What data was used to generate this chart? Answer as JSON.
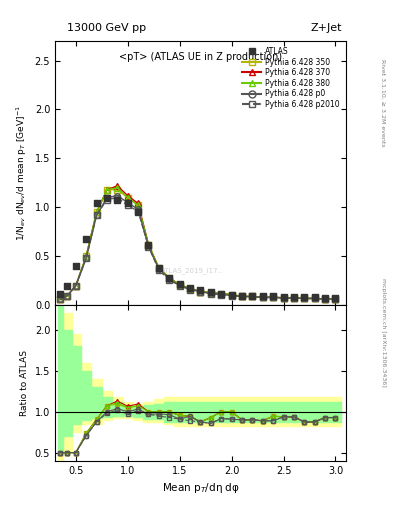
{
  "title_top": "13000 GeV pp",
  "title_right": "Z+Jet",
  "plot_title": "<pT> (ATLAS UE in Z production)",
  "ylabel_main": "1/N$_{ev}$ dN$_{ev}$/d mean p$_T$ [GeV]$^{-1}$",
  "ylabel_ratio": "Ratio to ATLAS",
  "xlabel": "Mean p$_T$/dη dφ",
  "right_label_top": "Rivet 3.1.10, ≥ 3.2M events",
  "right_label_bot": "mcplots.cern.ch [arXiv:1306.3436]",
  "watermark": "ATLAS_2019_I17...",
  "main_ylim": [
    0.0,
    2.7
  ],
  "ratio_ylim": [
    0.4,
    2.3
  ],
  "xlim": [
    0.3,
    3.1
  ],
  "atlas_x": [
    0.35,
    0.42,
    0.5,
    0.6,
    0.7,
    0.8,
    0.9,
    1.0,
    1.1,
    1.2,
    1.3,
    1.4,
    1.5,
    1.6,
    1.7,
    1.8,
    1.9,
    2.0,
    2.1,
    2.2,
    2.3,
    2.4,
    2.5,
    2.6,
    2.7,
    2.8,
    2.9,
    3.0
  ],
  "atlas_y": [
    0.12,
    0.2,
    0.4,
    0.68,
    1.05,
    1.1,
    1.08,
    1.05,
    0.95,
    0.62,
    0.38,
    0.28,
    0.22,
    0.18,
    0.16,
    0.14,
    0.12,
    0.11,
    0.1,
    0.1,
    0.09,
    0.09,
    0.08,
    0.08,
    0.08,
    0.08,
    0.07,
    0.07
  ],
  "p350_x": [
    0.35,
    0.42,
    0.5,
    0.6,
    0.7,
    0.8,
    0.9,
    1.0,
    1.1,
    1.2,
    1.3,
    1.4,
    1.5,
    1.6,
    1.7,
    1.8,
    1.9,
    2.0,
    2.1,
    2.2,
    2.3,
    2.4,
    2.5,
    2.6,
    2.7,
    2.8,
    2.9,
    3.0
  ],
  "p350_y": [
    0.06,
    0.1,
    0.2,
    0.5,
    0.95,
    1.18,
    1.18,
    1.1,
    1.02,
    0.62,
    0.38,
    0.28,
    0.21,
    0.17,
    0.14,
    0.13,
    0.12,
    0.11,
    0.09,
    0.09,
    0.08,
    0.085,
    0.075,
    0.075,
    0.07,
    0.07,
    0.065,
    0.065
  ],
  "p370_x": [
    0.35,
    0.42,
    0.5,
    0.6,
    0.7,
    0.8,
    0.9,
    1.0,
    1.1,
    1.2,
    1.3,
    1.4,
    1.5,
    1.6,
    1.7,
    1.8,
    1.9,
    2.0,
    2.1,
    2.2,
    2.3,
    2.4,
    2.5,
    2.6,
    2.7,
    2.8,
    2.9,
    3.0
  ],
  "p370_y": [
    0.06,
    0.1,
    0.2,
    0.5,
    0.95,
    1.18,
    1.22,
    1.12,
    1.04,
    0.62,
    0.38,
    0.28,
    0.21,
    0.17,
    0.14,
    0.13,
    0.12,
    0.11,
    0.09,
    0.09,
    0.08,
    0.085,
    0.075,
    0.075,
    0.07,
    0.07,
    0.065,
    0.065
  ],
  "p380_x": [
    0.35,
    0.42,
    0.5,
    0.6,
    0.7,
    0.8,
    0.9,
    1.0,
    1.1,
    1.2,
    1.3,
    1.4,
    1.5,
    1.6,
    1.7,
    1.8,
    1.9,
    2.0,
    2.1,
    2.2,
    2.3,
    2.4,
    2.5,
    2.6,
    2.7,
    2.8,
    2.9,
    3.0
  ],
  "p380_y": [
    0.06,
    0.1,
    0.2,
    0.5,
    0.95,
    1.18,
    1.2,
    1.1,
    1.02,
    0.62,
    0.38,
    0.28,
    0.21,
    0.17,
    0.14,
    0.13,
    0.12,
    0.11,
    0.09,
    0.09,
    0.08,
    0.085,
    0.075,
    0.075,
    0.07,
    0.07,
    0.065,
    0.065
  ],
  "pp0_x": [
    0.35,
    0.42,
    0.5,
    0.6,
    0.7,
    0.8,
    0.9,
    1.0,
    1.1,
    1.2,
    1.3,
    1.4,
    1.5,
    1.6,
    1.7,
    1.8,
    1.9,
    2.0,
    2.1,
    2.2,
    2.3,
    2.4,
    2.5,
    2.6,
    2.7,
    2.8,
    2.9,
    3.0
  ],
  "pp0_y": [
    0.06,
    0.1,
    0.2,
    0.48,
    0.92,
    1.1,
    1.12,
    1.05,
    0.98,
    0.6,
    0.37,
    0.27,
    0.2,
    0.17,
    0.14,
    0.12,
    0.11,
    0.1,
    0.09,
    0.09,
    0.08,
    0.08,
    0.075,
    0.075,
    0.07,
    0.07,
    0.065,
    0.065
  ],
  "pp2010_x": [
    0.35,
    0.42,
    0.5,
    0.6,
    0.7,
    0.8,
    0.9,
    1.0,
    1.1,
    1.2,
    1.3,
    1.4,
    1.5,
    1.6,
    1.7,
    1.8,
    1.9,
    2.0,
    2.1,
    2.2,
    2.3,
    2.4,
    2.5,
    2.6,
    2.7,
    2.8,
    2.9,
    3.0
  ],
  "pp2010_y": [
    0.06,
    0.1,
    0.2,
    0.48,
    0.92,
    1.08,
    1.1,
    1.02,
    0.96,
    0.6,
    0.36,
    0.26,
    0.2,
    0.16,
    0.14,
    0.12,
    0.11,
    0.1,
    0.09,
    0.09,
    0.08,
    0.08,
    0.075,
    0.075,
    0.07,
    0.07,
    0.065,
    0.065
  ],
  "band_yellow_x": [
    0.33,
    0.42,
    0.5,
    0.6,
    0.7,
    0.8,
    0.9,
    1.0,
    1.1,
    1.2,
    1.3,
    1.4,
    1.5,
    1.6,
    1.7,
    1.8,
    1.9,
    2.0,
    2.1,
    2.2,
    2.3,
    2.4,
    2.5,
    2.6,
    2.7,
    2.8,
    2.9,
    3.05
  ],
  "band_yellow_lo": [
    0.3,
    0.5,
    0.75,
    0.85,
    0.85,
    0.9,
    0.92,
    0.92,
    0.9,
    0.88,
    0.88,
    0.85,
    0.82,
    0.82,
    0.82,
    0.82,
    0.82,
    0.82,
    0.82,
    0.82,
    0.82,
    0.82,
    0.82,
    0.82,
    0.82,
    0.82,
    0.82,
    0.82
  ],
  "band_yellow_hi": [
    2.5,
    2.2,
    1.95,
    1.6,
    1.4,
    1.25,
    1.18,
    1.12,
    1.1,
    1.12,
    1.15,
    1.18,
    1.18,
    1.18,
    1.18,
    1.18,
    1.18,
    1.18,
    1.18,
    1.18,
    1.18,
    1.18,
    1.18,
    1.18,
    1.18,
    1.18,
    1.18,
    1.18
  ],
  "band_green_x": [
    0.33,
    0.42,
    0.5,
    0.6,
    0.7,
    0.8,
    0.9,
    1.0,
    1.1,
    1.2,
    1.3,
    1.4,
    1.5,
    1.6,
    1.7,
    1.8,
    1.9,
    2.0,
    2.1,
    2.2,
    2.3,
    2.4,
    2.5,
    2.6,
    2.7,
    2.8,
    2.9,
    3.05
  ],
  "band_green_lo": [
    0.5,
    0.7,
    0.85,
    0.9,
    0.92,
    0.94,
    0.95,
    0.95,
    0.93,
    0.91,
    0.91,
    0.88,
    0.87,
    0.87,
    0.87,
    0.87,
    0.87,
    0.87,
    0.87,
    0.87,
    0.87,
    0.87,
    0.87,
    0.87,
    0.87,
    0.87,
    0.87,
    0.87
  ],
  "band_green_hi": [
    2.3,
    2.0,
    1.8,
    1.5,
    1.3,
    1.18,
    1.12,
    1.08,
    1.06,
    1.08,
    1.1,
    1.12,
    1.12,
    1.12,
    1.12,
    1.12,
    1.12,
    1.12,
    1.12,
    1.12,
    1.12,
    1.12,
    1.12,
    1.12,
    1.12,
    1.12,
    1.12,
    1.12
  ],
  "color_atlas": "#333333",
  "color_p350": "#b5b500",
  "color_p370": "#cc0000",
  "color_p380": "#66cc00",
  "color_pp0": "#555555",
  "color_pp2010": "#555555",
  "color_band_yellow": "#ffff99",
  "color_band_green": "#99ff99",
  "legend_entries": [
    "ATLAS",
    "Pythia 6.428 350",
    "Pythia 6.428 370",
    "Pythia 6.428 380",
    "Pythia 6.428 p0",
    "Pythia 6.428 p2010"
  ]
}
